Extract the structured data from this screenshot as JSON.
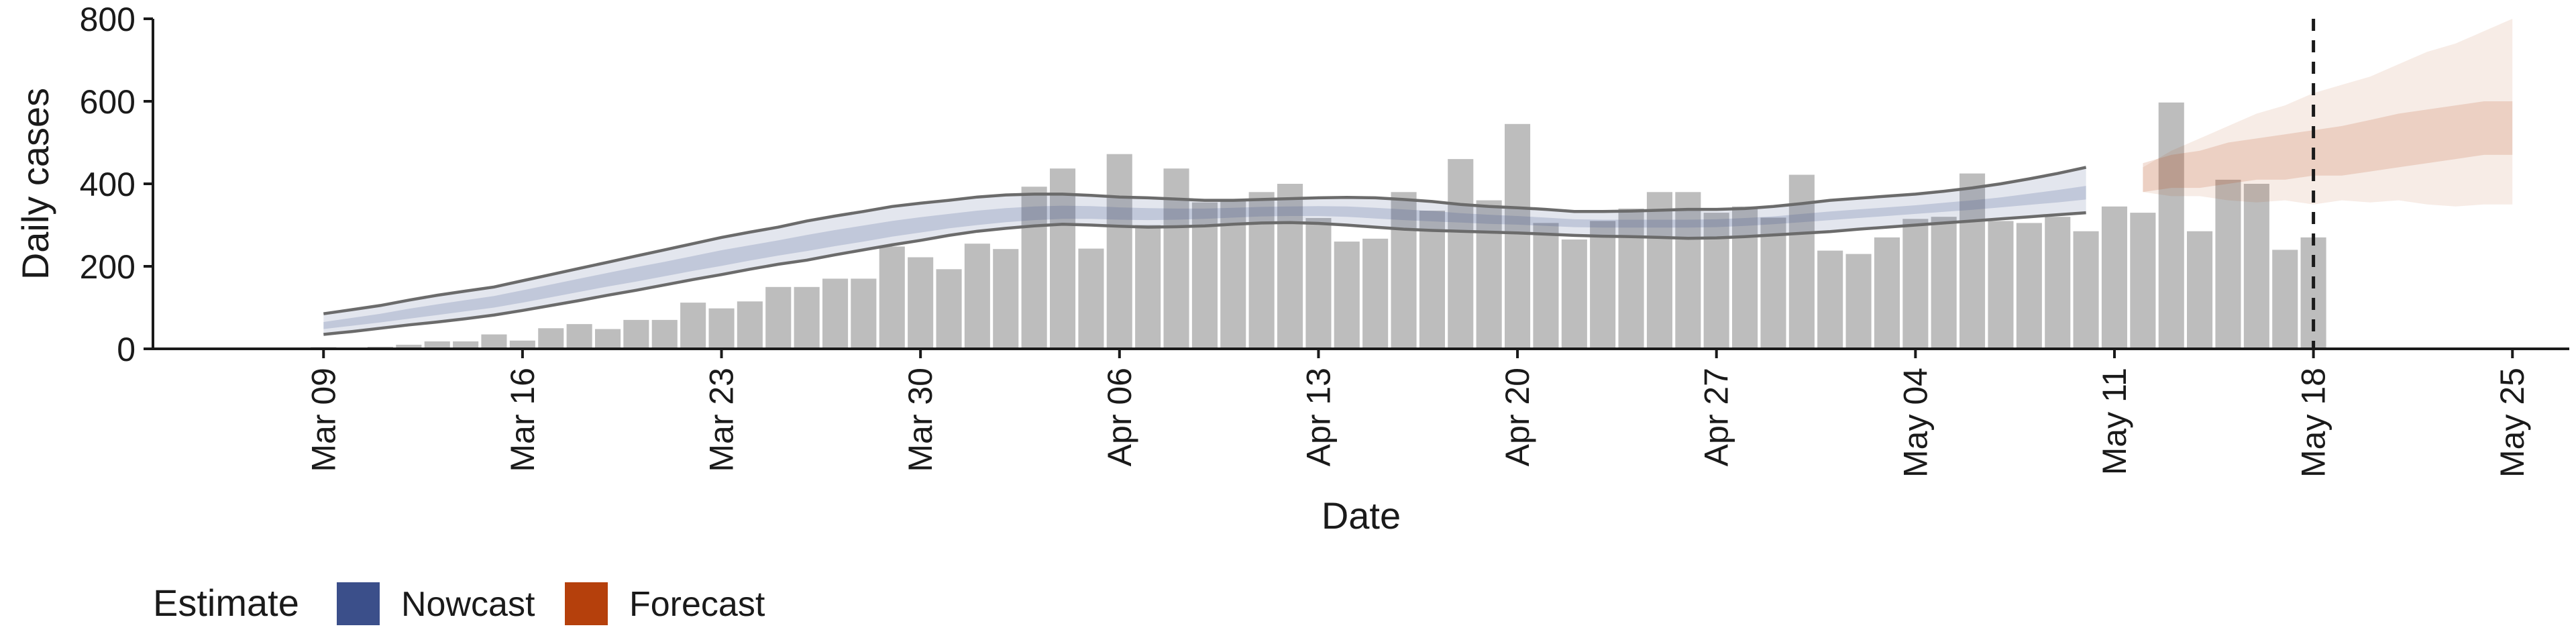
{
  "chart_data": {
    "type": "bar",
    "xlabel": "Date",
    "ylabel": "Daily cases",
    "ylim": [
      0,
      800
    ],
    "yticks": [
      0,
      200,
      400,
      600,
      800
    ],
    "grid": false,
    "x_range": [
      "2020-03-03",
      "2020-05-27"
    ],
    "x_tick_labels": [
      {
        "date": "2020-03-09",
        "label": "Mar 09"
      },
      {
        "date": "2020-03-16",
        "label": "Mar 16"
      },
      {
        "date": "2020-03-23",
        "label": "Mar 23"
      },
      {
        "date": "2020-03-30",
        "label": "Mar 30"
      },
      {
        "date": "2020-04-06",
        "label": "Apr 06"
      },
      {
        "date": "2020-04-13",
        "label": "Apr 13"
      },
      {
        "date": "2020-04-20",
        "label": "Apr 20"
      },
      {
        "date": "2020-04-27",
        "label": "Apr 27"
      },
      {
        "date": "2020-05-04",
        "label": "May 04"
      },
      {
        "date": "2020-05-11",
        "label": "May 11"
      },
      {
        "date": "2020-05-18",
        "label": "May 18"
      },
      {
        "date": "2020-05-25",
        "label": "May 25"
      }
    ],
    "reference_line_date": "2020-05-18",
    "bars": {
      "start_date": "2020-03-09",
      "values": [
        4,
        3,
        5,
        10,
        18,
        18,
        35,
        20,
        50,
        60,
        48,
        70,
        70,
        112,
        98,
        115,
        150,
        150,
        170,
        170,
        248,
        222,
        193,
        255,
        242,
        393,
        437,
        243,
        472,
        300,
        437,
        355,
        360,
        380,
        400,
        317,
        260,
        267,
        380,
        335,
        460,
        360,
        545,
        305,
        265,
        310,
        340,
        380,
        380,
        330,
        345,
        318,
        422,
        238,
        230,
        270,
        315,
        320,
        425,
        310,
        305,
        320,
        285,
        345,
        330,
        597,
        285,
        410,
        400,
        240,
        270
      ]
    },
    "series": [
      {
        "name": "Nowcast",
        "color": "#3b4f8a",
        "start_date": "2020-03-09",
        "outer_upper": [
          85,
          95,
          105,
          118,
          130,
          140,
          150,
          165,
          180,
          195,
          210,
          225,
          240,
          255,
          270,
          283,
          295,
          310,
          322,
          333,
          345,
          353,
          360,
          368,
          373,
          375,
          375,
          372,
          368,
          366,
          363,
          360,
          360,
          362,
          364,
          366,
          367,
          366,
          362,
          357,
          350,
          345,
          342,
          338,
          333,
          333,
          334,
          336,
          338,
          338,
          340,
          345,
          352,
          360,
          365,
          370,
          375,
          382,
          390,
          400,
          412,
          425,
          440
        ],
        "outer_lower": [
          35,
          42,
          50,
          58,
          65,
          73,
          82,
          93,
          105,
          117,
          130,
          142,
          155,
          168,
          180,
          193,
          205,
          215,
          228,
          240,
          252,
          263,
          275,
          285,
          292,
          298,
          302,
          300,
          297,
          295,
          296,
          298,
          302,
          305,
          306,
          304,
          300,
          295,
          290,
          287,
          285,
          283,
          281,
          278,
          275,
          273,
          272,
          270,
          268,
          269,
          272,
          276,
          280,
          284,
          290,
          295,
          300,
          305,
          310,
          315,
          320,
          325,
          330
        ],
        "inner_upper": [
          65,
          75,
          85,
          97,
          108,
          118,
          128,
          142,
          156,
          170,
          184,
          198,
          211,
          225,
          239,
          251,
          263,
          276,
          288,
          299,
          310,
          319,
          327,
          335,
          341,
          345,
          347,
          346,
          343,
          341,
          340,
          340,
          342,
          344,
          345,
          346,
          345,
          342,
          338,
          334,
          329,
          325,
          322,
          318,
          314,
          313,
          313,
          313,
          313,
          314,
          317,
          321,
          327,
          333,
          338,
          343,
          348,
          354,
          360,
          367,
          376,
          385,
          395
        ],
        "inner_lower": [
          48,
          56,
          64,
          73,
          82,
          91,
          100,
          112,
          125,
          138,
          151,
          163,
          176,
          189,
          201,
          214,
          226,
          237,
          249,
          260,
          272,
          282,
          292,
          300,
          307,
          312,
          315,
          315,
          313,
          312,
          313,
          315,
          318,
          321,
          322,
          322,
          320,
          316,
          312,
          309,
          306,
          303,
          301,
          298,
          295,
          294,
          294,
          294,
          294,
          295,
          298,
          302,
          307,
          312,
          317,
          322,
          327,
          332,
          337,
          343,
          349,
          355,
          362
        ]
      },
      {
        "name": "Forecast",
        "color": "#b5400c",
        "start_date": "2020-05-12",
        "outer_upper": [
          440,
          480,
          510,
          540,
          570,
          590,
          620,
          640,
          660,
          690,
          720,
          740,
          770,
          800
        ],
        "outer_lower": [
          380,
          370,
          370,
          360,
          355,
          360,
          350,
          360,
          355,
          360,
          350,
          345,
          350,
          350
        ],
        "inner_upper": [
          450,
          470,
          480,
          500,
          510,
          520,
          530,
          540,
          555,
          570,
          580,
          590,
          600,
          600
        ],
        "inner_lower": [
          380,
          390,
          390,
          400,
          410,
          410,
          420,
          420,
          430,
          440,
          450,
          460,
          470,
          470
        ]
      }
    ],
    "legend": {
      "title": "Estimate",
      "position": "bottom-left",
      "entries": [
        {
          "label": "Nowcast",
          "color": "#3b4f8a"
        },
        {
          "label": "Forecast",
          "color": "#b5400c"
        }
      ]
    }
  }
}
